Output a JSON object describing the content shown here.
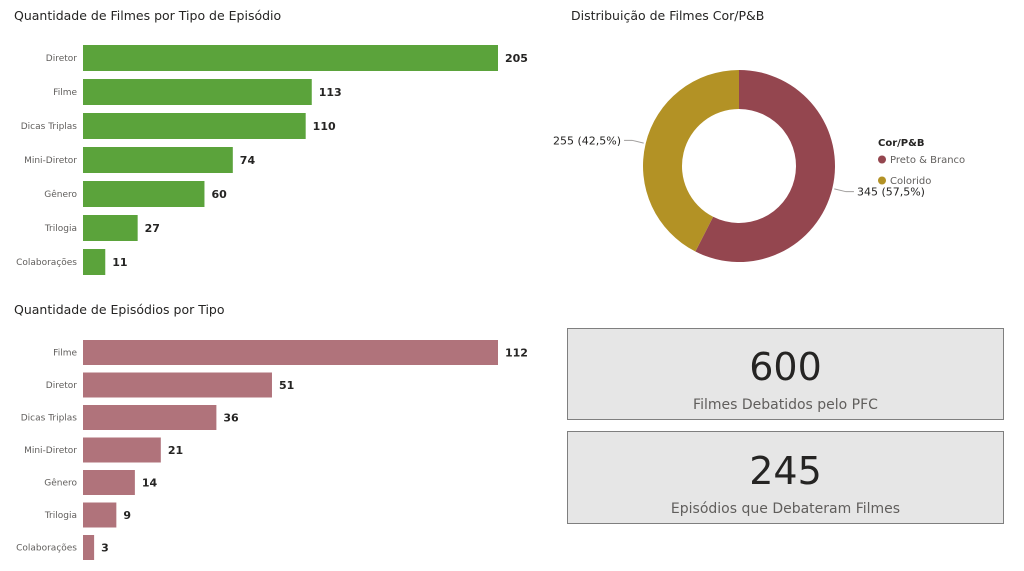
{
  "chart_data": [
    {
      "type": "bar",
      "orientation": "horizontal",
      "title": "Quantidade de Filmes por Tipo de Episódio",
      "categories": [
        "Diretor",
        "Filme",
        "Dicas Triplas",
        "Mini-Diretor",
        "Gênero",
        "Trilogia",
        "Colaborações"
      ],
      "values": [
        205,
        113,
        110,
        74,
        60,
        27,
        11
      ],
      "color": "#5ba33b",
      "data_labels": true
    },
    {
      "type": "bar",
      "orientation": "horizontal",
      "title": "Quantidade de Episódios por Tipo",
      "categories": [
        "Filme",
        "Diretor",
        "Dicas Triplas",
        "Mini-Diretor",
        "Gênero",
        "Trilogia",
        "Colaborações"
      ],
      "values": [
        112,
        51,
        36,
        21,
        14,
        9,
        3
      ],
      "color": "#b0737b",
      "data_labels": true
    },
    {
      "type": "pie",
      "donut": true,
      "title": "Distribuição de Filmes Cor/P&B",
      "legend_title": "Cor/P&B",
      "legend_position": "right",
      "slices": [
        {
          "name": "Preto & Branco",
          "value": 345,
          "label": "345 (57,5%)",
          "color": "#94464f"
        },
        {
          "name": "Colorido",
          "value": 255,
          "label": "255 (42,5%)",
          "color": "#b39225"
        }
      ]
    }
  ],
  "cards": [
    {
      "value": "600",
      "label": "Filmes Debatidos pelo PFC"
    },
    {
      "value": "245",
      "label": "Episódios que Debateram Filmes"
    }
  ]
}
